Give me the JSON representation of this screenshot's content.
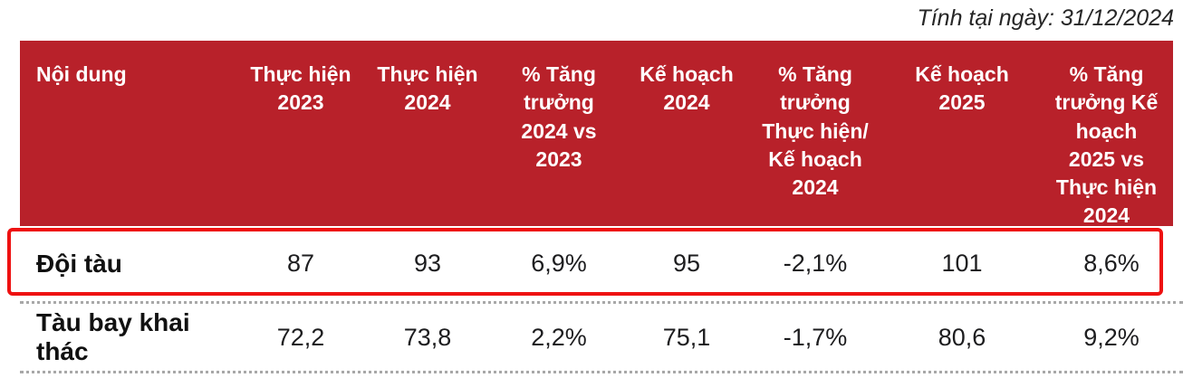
{
  "note": "Tính tại ngày: 31/12/2024",
  "colors": {
    "header_bg": "#B8212A",
    "header_text": "#FFFFFF",
    "highlight_border": "#EE1111",
    "body_text": "#1D1D1F",
    "dotted_separator": "#A8A8A8"
  },
  "chart_data": {
    "type": "table",
    "title": "",
    "columns": [
      "Nội dung",
      "Thực hiện 2023",
      "Thực hiện 2024",
      "% Tăng trưởng 2024 vs 2023",
      "Kế hoạch 2024",
      "% Tăng trưởng Thực hiện/ Kế hoạch 2024",
      "Kế hoạch 2025",
      "% Tăng trưởng Kế hoạch 2025 vs Thực hiện 2024"
    ],
    "rows": [
      {
        "label": "Đội tàu",
        "values": [
          "87",
          "93",
          "6,9%",
          "95",
          "-2,1%",
          "101",
          "8,6%"
        ],
        "highlighted": true
      },
      {
        "label": "Tàu bay khai thác",
        "values": [
          "72,2",
          "73,8",
          "2,2%",
          "75,1",
          "-1,7%",
          "80,6",
          "9,2%"
        ],
        "highlighted": false
      }
    ]
  }
}
